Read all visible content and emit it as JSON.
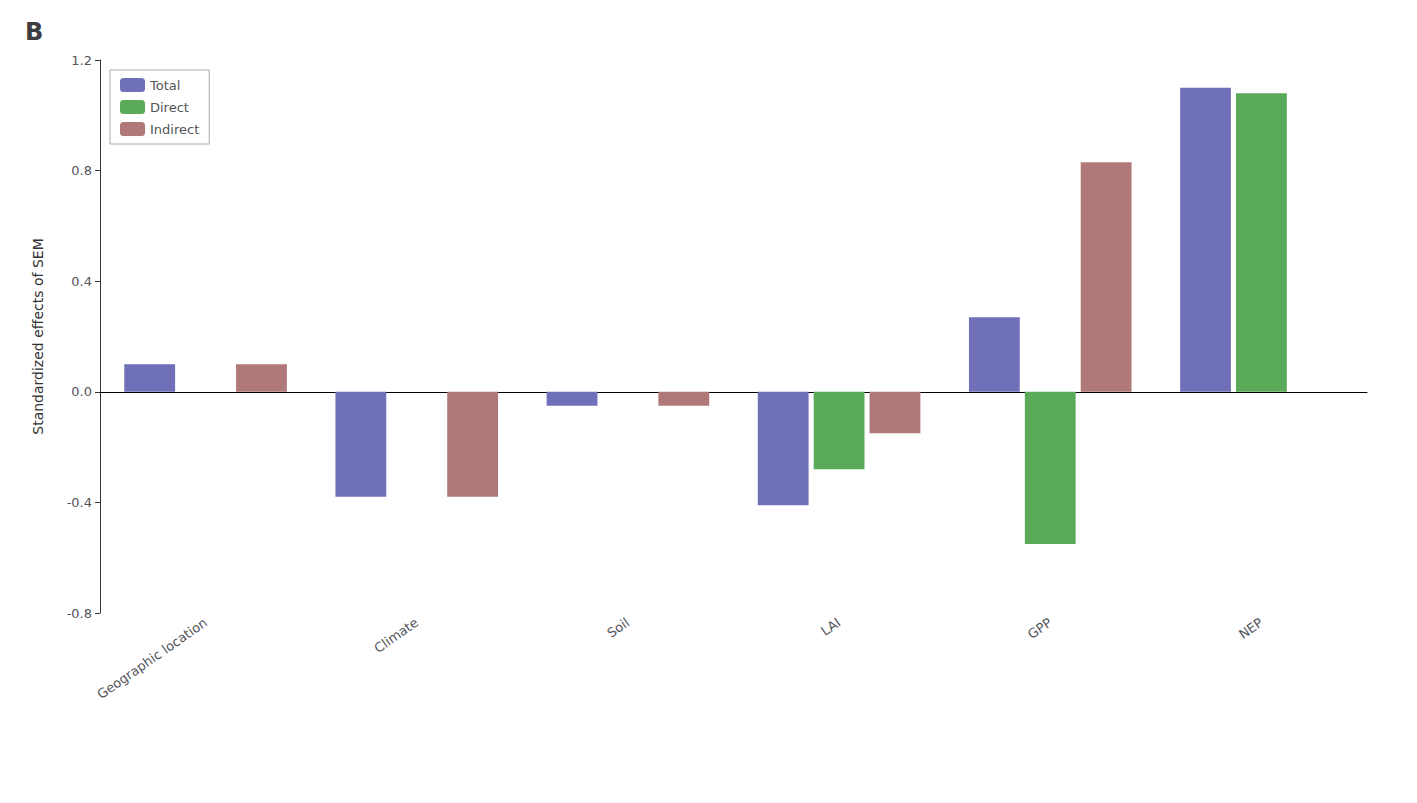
{
  "chart_data": {
    "type": "bar",
    "title": "B",
    "categories": [
      "Geographic location",
      "Climate",
      "Soil",
      "LAI",
      "GPP",
      "NEP"
    ],
    "series": [
      {
        "name": "Total",
        "color": "#7070b8",
        "values": [
          0.1,
          -0.38,
          -0.05,
          -0.41,
          0.27,
          1.1
        ]
      },
      {
        "name": "Direct",
        "color": "#5aaa5a",
        "values": [
          null,
          null,
          null,
          -0.28,
          -0.55,
          1.08
        ]
      },
      {
        "name": "Indirect",
        "color": "#b07878",
        "values": [
          0.1,
          -0.38,
          -0.05,
          -0.15,
          0.83,
          null
        ]
      }
    ],
    "ylabel": "Standardized effects of SEM",
    "ylim": [
      -0.8,
      1.2
    ],
    "yticks": [
      -0.8,
      -0.4,
      {
        "value": 0,
        "label": "0.0"
      },
      0.4,
      0.8,
      1.2
    ],
    "grid": false,
    "legend": "upper left"
  }
}
